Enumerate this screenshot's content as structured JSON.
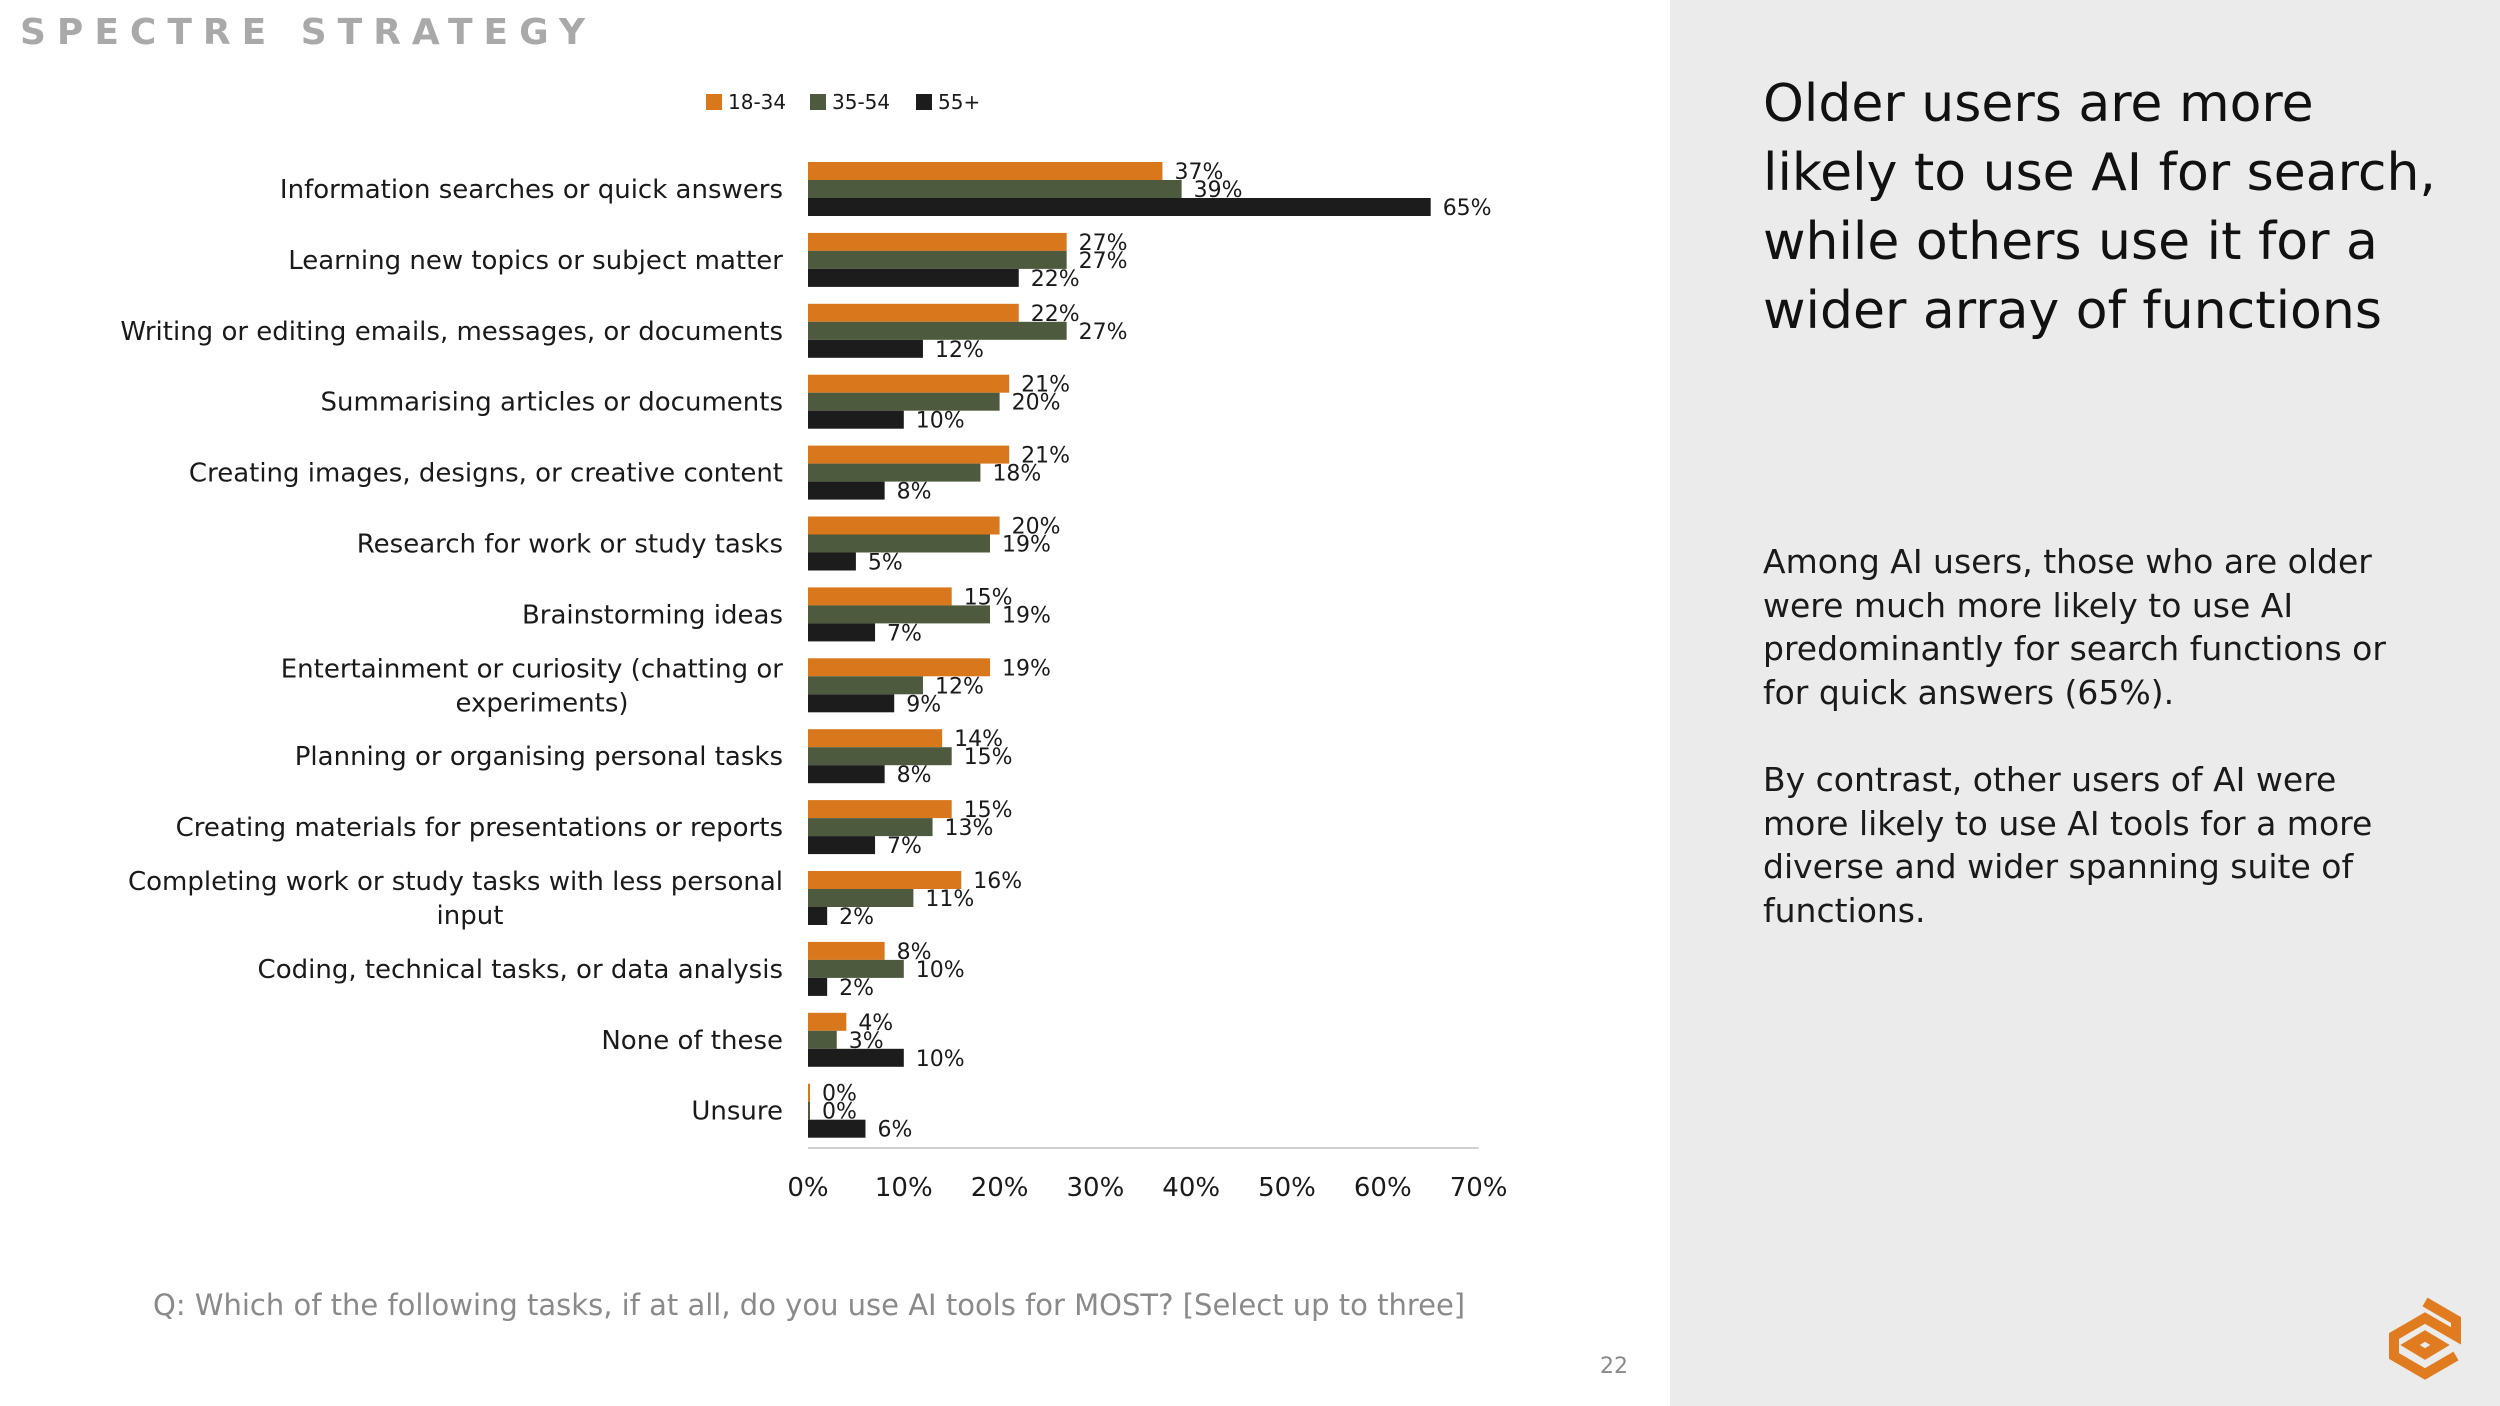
{
  "brand": "SPECTRE STRATEGY",
  "headline": "Older users are more likely to use AI for search, while others use it for a wider array of functions",
  "body": {
    "p1": "Among AI users, those who are older were much more likely to use AI predominantly for search functions or for quick answers (65%).",
    "p2": "By contrast, other users of AI were more likely to use AI tools for a more diverse and wider spanning suite of functions."
  },
  "question": "Q: Which of the following tasks, if at all, do you use AI tools for MOST? [Select up to three]",
  "page_number": "22",
  "colors": {
    "s1": "#d9771c",
    "s2": "#4e5a3e",
    "s3": "#1c1c1c",
    "logo": "#e07c1f"
  },
  "chart_data": {
    "type": "bar",
    "orientation": "horizontal",
    "xlim": [
      0,
      70
    ],
    "xticks": [
      "0%",
      "10%",
      "20%",
      "30%",
      "40%",
      "50%",
      "60%",
      "70%"
    ],
    "categories": [
      [
        "Information searches or quick answers"
      ],
      [
        "Learning new topics or subject matter"
      ],
      [
        "Writing or editing emails, messages, or documents"
      ],
      [
        "Summarising articles or documents"
      ],
      [
        "Creating images, designs, or creative content"
      ],
      [
        "Research for work or study tasks"
      ],
      [
        "Brainstorming ideas"
      ],
      [
        "Entertainment or curiosity (chatting or",
        "experiments)"
      ],
      [
        "Planning or organising personal tasks"
      ],
      [
        "Creating materials for presentations or reports"
      ],
      [
        "Completing work or study tasks with less personal",
        "input"
      ],
      [
        "Coding, technical tasks, or data analysis"
      ],
      [
        "None of these"
      ],
      [
        "Unsure"
      ]
    ],
    "series": [
      {
        "name": "18-34",
        "values": [
          37,
          27,
          22,
          21,
          21,
          20,
          15,
          19,
          14,
          15,
          16,
          8,
          4,
          0
        ]
      },
      {
        "name": "35-54",
        "values": [
          39,
          27,
          27,
          20,
          18,
          19,
          19,
          12,
          15,
          13,
          11,
          10,
          3,
          0
        ]
      },
      {
        "name": "55+",
        "values": [
          65,
          22,
          12,
          10,
          8,
          5,
          7,
          9,
          8,
          7,
          2,
          2,
          10,
          6
        ]
      }
    ],
    "legend": "top"
  }
}
